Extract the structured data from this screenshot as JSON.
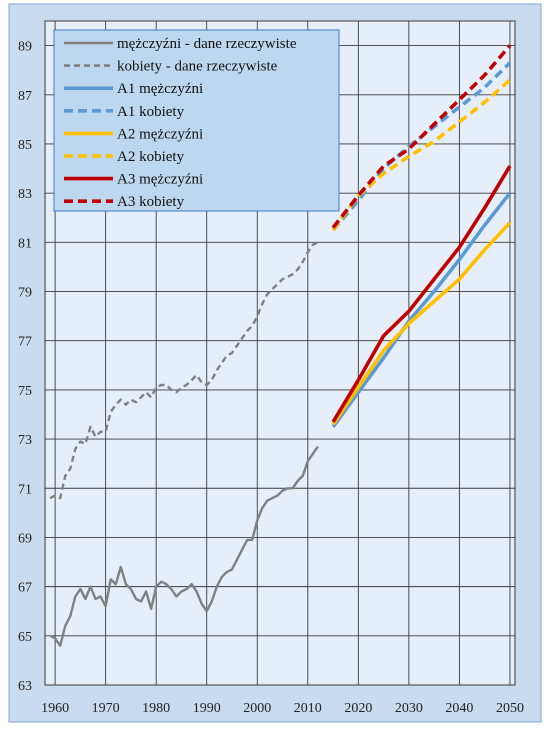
{
  "chart_data": {
    "type": "line",
    "title": "",
    "xlabel": "",
    "ylabel": "",
    "xlim": [
      1958,
      2051
    ],
    "ylim": [
      63,
      90
    ],
    "grid": true,
    "legend_position": "top-left",
    "x_tick_labels": [
      "1960",
      "1970",
      "1980",
      "1990",
      "2000",
      "2010",
      "2020",
      "2030",
      "2040",
      "2050"
    ],
    "x_tick_values": [
      1960,
      1970,
      1980,
      1990,
      2000,
      2010,
      2020,
      2030,
      2040,
      2050
    ],
    "y_tick_labels": [
      "63",
      "65",
      "67",
      "69",
      "71",
      "73",
      "75",
      "77",
      "79",
      "81",
      "83",
      "85",
      "87",
      "89"
    ],
    "y_tick_values": [
      63,
      65,
      67,
      69,
      71,
      73,
      75,
      77,
      79,
      81,
      83,
      85,
      87,
      89
    ],
    "colors": {
      "frame_bg": "#c9dcef",
      "plot_bg": "#e6eff9",
      "grid": "#3a3a3a",
      "legend_bg": "#bdd7ee",
      "legend_border": "#3d7cc9",
      "actual": "#808080",
      "a1": "#5b9bd5",
      "a2": "#ffc000",
      "a3": "#c00000"
    },
    "series": [
      {
        "name": "mężczyźni - dane rzeczywiste",
        "color": "#808080",
        "dash": false,
        "x": [
          1959,
          1960,
          1961,
          1962,
          1963,
          1964,
          1965,
          1966,
          1967,
          1968,
          1969,
          1970,
          1971,
          1972,
          1973,
          1974,
          1975,
          1976,
          1977,
          1978,
          1979,
          1980,
          1981,
          1982,
          1983,
          1984,
          1985,
          1986,
          1987,
          1988,
          1989,
          1990,
          1991,
          1992,
          1993,
          1994,
          1995,
          1996,
          1997,
          1998,
          1999,
          2000,
          2001,
          2002,
          2003,
          2004,
          2005,
          2006,
          2007,
          2008,
          2009,
          2010,
          2011,
          2012
        ],
        "values": [
          65.0,
          64.9,
          64.6,
          65.4,
          65.8,
          66.6,
          66.9,
          66.5,
          67.0,
          66.5,
          66.6,
          66.2,
          67.3,
          67.1,
          67.8,
          67.1,
          66.9,
          66.5,
          66.4,
          66.8,
          66.1,
          67.0,
          67.2,
          67.1,
          66.9,
          66.6,
          66.8,
          66.9,
          67.1,
          66.8,
          66.3,
          66.0,
          66.4,
          67.0,
          67.4,
          67.6,
          67.7,
          68.1,
          68.5,
          68.9,
          68.9,
          69.7,
          70.2,
          70.5,
          70.6,
          70.7,
          70.9,
          71.0,
          71.0,
          71.3,
          71.5,
          72.1,
          72.4,
          72.7
        ]
      },
      {
        "name": "kobiety - dane rzeczywiste",
        "color": "#808080",
        "dash": true,
        "x": [
          1959,
          1960,
          1961,
          1962,
          1963,
          1964,
          1965,
          1966,
          1967,
          1968,
          1969,
          1970,
          1971,
          1972,
          1973,
          1974,
          1975,
          1976,
          1977,
          1978,
          1979,
          1980,
          1981,
          1982,
          1983,
          1984,
          1985,
          1986,
          1987,
          1988,
          1989,
          1990,
          1991,
          1992,
          1993,
          1994,
          1995,
          1996,
          1997,
          1998,
          1999,
          2000,
          2001,
          2002,
          2003,
          2004,
          2005,
          2006,
          2007,
          2008,
          2009,
          2010,
          2011,
          2012
        ],
        "values": [
          70.6,
          70.7,
          70.6,
          71.5,
          71.8,
          72.6,
          72.9,
          72.8,
          73.5,
          73.1,
          73.3,
          73.3,
          74.1,
          74.4,
          74.6,
          74.4,
          74.6,
          74.5,
          74.7,
          74.9,
          74.7,
          75.1,
          75.2,
          75.2,
          75.0,
          74.9,
          75.1,
          75.2,
          75.4,
          75.6,
          75.3,
          75.2,
          75.4,
          75.8,
          76.1,
          76.4,
          76.5,
          76.8,
          77.1,
          77.4,
          77.6,
          78.0,
          78.5,
          78.9,
          79.1,
          79.3,
          79.5,
          79.6,
          79.7,
          79.9,
          80.2,
          80.6,
          80.9,
          81.0
        ]
      },
      {
        "name": "A1 mężczyźni",
        "color": "#5b9bd5",
        "dash": false,
        "x": [
          2015,
          2020,
          2025,
          2030,
          2035,
          2040,
          2045,
          2050
        ],
        "values": [
          73.5,
          74.9,
          76.3,
          77.8,
          79.0,
          80.3,
          81.7,
          83.0
        ]
      },
      {
        "name": "A1 kobiety",
        "color": "#5b9bd5",
        "dash": true,
        "x": [
          2015,
          2020,
          2025,
          2030,
          2035,
          2040,
          2045,
          2050
        ],
        "values": [
          81.5,
          82.7,
          84.0,
          84.9,
          85.7,
          86.5,
          87.3,
          88.3
        ]
      },
      {
        "name": "A2 mężczyźni",
        "color": "#ffc000",
        "dash": false,
        "x": [
          2015,
          2020,
          2025,
          2030,
          2035,
          2040,
          2045,
          2050
        ],
        "values": [
          73.6,
          75.1,
          76.6,
          77.7,
          78.6,
          79.5,
          80.7,
          81.8
        ]
      },
      {
        "name": "A2 kobiety",
        "color": "#ffc000",
        "dash": true,
        "x": [
          2015,
          2020,
          2025,
          2030,
          2035,
          2040,
          2045,
          2050
        ],
        "values": [
          81.5,
          82.9,
          83.8,
          84.5,
          85.1,
          85.9,
          86.7,
          87.6
        ]
      },
      {
        "name": "A3 mężczyźni",
        "color": "#c00000",
        "dash": false,
        "x": [
          2015,
          2020,
          2025,
          2030,
          2035,
          2040,
          2045,
          2050
        ],
        "values": [
          73.7,
          75.4,
          77.2,
          78.2,
          79.5,
          80.8,
          82.4,
          84.1
        ]
      },
      {
        "name": "A3 kobiety",
        "color": "#c00000",
        "dash": true,
        "x": [
          2015,
          2020,
          2025,
          2030,
          2035,
          2040,
          2045,
          2050
        ],
        "values": [
          81.6,
          82.9,
          84.1,
          84.8,
          85.8,
          86.8,
          87.8,
          89.0
        ]
      }
    ]
  }
}
